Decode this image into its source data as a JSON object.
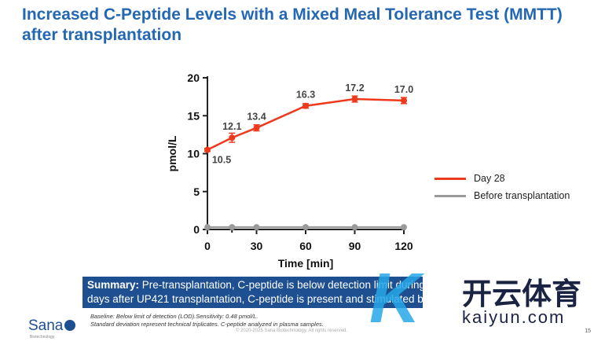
{
  "title": "Increased C-Peptide Levels with a Mixed Meal Tolerance Test (MMTT) after transplantation",
  "chart_data": {
    "type": "line",
    "xlabel": "Time [min]",
    "ylabel": "pmol/L",
    "xlim": [
      0,
      120
    ],
    "ylim": [
      0,
      20
    ],
    "xticks": [
      0,
      30,
      60,
      90,
      120
    ],
    "yticks": [
      0,
      5,
      10,
      15,
      20
    ],
    "x": [
      0,
      15,
      30,
      60,
      90,
      120
    ],
    "series": [
      {
        "name": "Day 28",
        "color": "#ee3a1c",
        "values": [
          10.5,
          12.1,
          13.4,
          16.3,
          17.2,
          17.0
        ],
        "errors": [
          0.2,
          0.6,
          0.4,
          0.3,
          0.4,
          0.4
        ],
        "labels": [
          "10.5",
          "12.1",
          "13.4",
          "16.3",
          "17.2",
          "17.0"
        ]
      },
      {
        "name": "Before transplantation",
        "color": "#9a9a9a",
        "values": [
          0.3,
          0.3,
          0.3,
          0.3,
          0.3,
          0.3
        ]
      }
    ],
    "legend": "right"
  },
  "summary": {
    "label": "Summary:",
    "text": " Pre-transplantation, C-peptide is below detection limit during MMTT. 28",
    "text2": "days after UP421 transplantation, C-peptide is present and stimulated by MMTT."
  },
  "footnotes": [
    "Baseline: Below limit of detection (LOD).Sensitivity: 0.48 pmol/L.",
    "Standard deviation represent technical triplicates. C-peptide analyzed in plasma samples."
  ],
  "copyright": "© 2020-2025 Sana Biotechnology. All rights reserved.",
  "page": "15",
  "logo": {
    "name": "Sana",
    "sub": "Biotechnology"
  },
  "watermark": {
    "cn": "开云体育",
    "en": "kaiyun.com"
  }
}
